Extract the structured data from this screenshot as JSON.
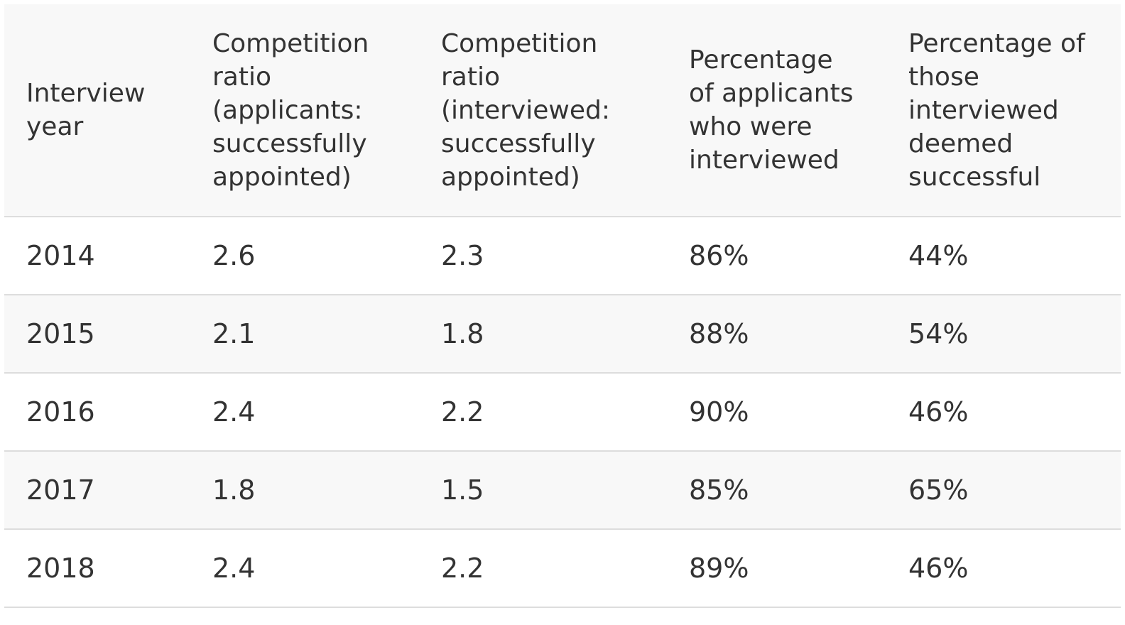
{
  "table": {
    "headers": [
      "Interview year",
      "Competition ratio (applicants: successfully appointed)",
      "Competition ratio (interviewed: successfully appointed)",
      "Percentage of applicants who were interviewed",
      "Percentage of those interviewed deemed successful"
    ],
    "rows": [
      [
        "2014",
        "2.6",
        "2.3",
        "86%",
        "44%"
      ],
      [
        "2015",
        "2.1",
        "1.8",
        "88%",
        "54%"
      ],
      [
        "2016",
        "2.4",
        "2.2",
        "90%",
        "46%"
      ],
      [
        "2017",
        "1.8",
        "1.5",
        "85%",
        "65%"
      ],
      [
        "2018",
        "2.4",
        "2.2",
        "89%",
        "46%"
      ]
    ]
  },
  "colors": {
    "text": "#333333",
    "header_bg": "#f8f8f8",
    "stripe_bg": "#f8f8f8",
    "border": "#dddddd"
  }
}
